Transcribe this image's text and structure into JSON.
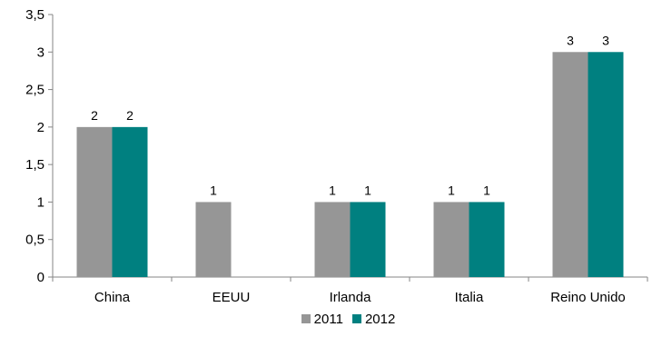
{
  "chart_data": {
    "type": "bar",
    "categories": [
      "China",
      "EEUU",
      "Irlanda",
      "Italia",
      "Reino Unido"
    ],
    "series": [
      {
        "name": "2011",
        "color": "#969696",
        "values": [
          2,
          1,
          1,
          1,
          3
        ],
        "labels": [
          "2",
          "1",
          "1",
          "1",
          "3"
        ]
      },
      {
        "name": "2012",
        "color": "#008080",
        "values": [
          2,
          null,
          1,
          1,
          3
        ],
        "labels": [
          "2",
          "",
          "1",
          "1",
          "3"
        ]
      }
    ],
    "ylim": [
      0,
      3.5
    ],
    "yticks": [
      "0",
      "0,5",
      "1",
      "1,5",
      "2",
      "2,5",
      "3",
      "3,5"
    ],
    "ytick_values": [
      0,
      0.5,
      1,
      1.5,
      2,
      2.5,
      3,
      3.5
    ],
    "grid": false,
    "legend_position": "bottom",
    "title": "",
    "xlabel": "",
    "ylabel": ""
  }
}
